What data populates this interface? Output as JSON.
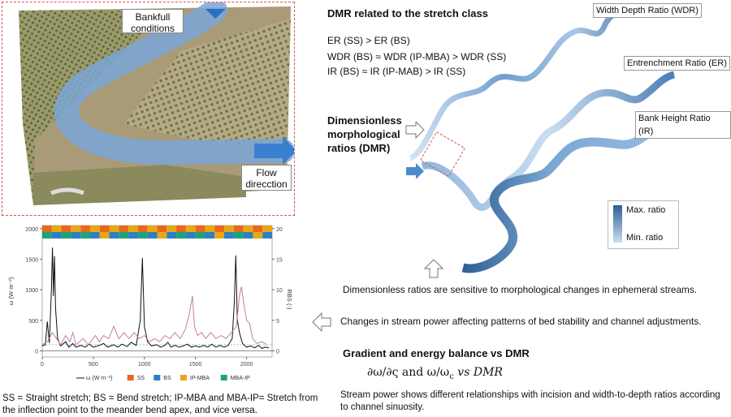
{
  "photo": {
    "callout_bankfull": "Bankfull conditions",
    "callout_flow": "Flow direcction"
  },
  "dmr_panel": {
    "title": "DMR related to the stretch class",
    "relations": [
      "ER (SS) > ER (BS)",
      "WDR (BS) ≈ WDR (IP-MBA) > WDR (SS)",
      "IR (BS) ≈ IR (IP-MAB) > IR (SS)"
    ],
    "dimensionless_label": "Dimensionless morphological ratios (DMR)",
    "river_labels": [
      "Width Depth Ratio (WDR)",
      "Entrenchment Ratio (ER)",
      "Bank Height Ratio (IR)"
    ],
    "scale_max": "Max. ratio",
    "scale_min": "Min. ratio",
    "colors": {
      "river_light": "#c9ddf0",
      "river_mid": "#7aa7d3",
      "river_dark": "#2f5f92"
    }
  },
  "statements": {
    "sensitivity": "Dimensionless ratios are sensitive to morphological changes in ephemeral streams.",
    "stream_power_changes": "Changes in stream power affecting patterns of bed stability and channel adjustments.",
    "gradient_title": "Gradient and energy balance vs DMR",
    "formula": "∂ω/∂ς  and  ω/ω",
    "formula_sub": "c",
    "formula_tail": "vs DMR",
    "conclusion": "Stream power shows different relationships with incision and width-to-depth ratios according to channel sinuosity."
  },
  "footnote": "SS = Straight stretch; BS = Bend stretch; IP-MBA and MBA-IP= Stretch from the inflection point to the meander bend apex,  and vice versa.",
  "chart_data": {
    "type": "line",
    "x_ticks": [
      0,
      500,
      1000,
      1500,
      2000
    ],
    "y_ticks": [
      0,
      500,
      1000,
      1500,
      2000
    ],
    "y2_ticks": [
      0,
      5,
      10,
      15,
      20
    ],
    "xlim": [
      0,
      2250
    ],
    "ylim": [
      -100,
      2050
    ],
    "y2lim": [
      -1,
      20.5
    ],
    "ylabel": "ω (W m⁻²)",
    "y2label": "RBS (-)",
    "reference_line_y2": 1,
    "series": [
      {
        "name": "ω (W m⁻²)",
        "axis": "left",
        "color": "#111111",
        "points": [
          [
            0,
            80
          ],
          [
            30,
            100
          ],
          [
            50,
            480
          ],
          [
            70,
            130
          ],
          [
            90,
            1000
          ],
          [
            100,
            1690
          ],
          [
            110,
            900
          ],
          [
            120,
            1550
          ],
          [
            130,
            700
          ],
          [
            150,
            200
          ],
          [
            180,
            80
          ],
          [
            230,
            150
          ],
          [
            260,
            60
          ],
          [
            300,
            120
          ],
          [
            330,
            60
          ],
          [
            380,
            90
          ],
          [
            420,
            60
          ],
          [
            460,
            110
          ],
          [
            500,
            60
          ],
          [
            560,
            90
          ],
          [
            600,
            120
          ],
          [
            640,
            60
          ],
          [
            700,
            100
          ],
          [
            740,
            60
          ],
          [
            780,
            110
          ],
          [
            830,
            70
          ],
          [
            870,
            140
          ],
          [
            920,
            90
          ],
          [
            960,
            500
          ],
          [
            980,
            1520
          ],
          [
            1000,
            400
          ],
          [
            1030,
            150
          ],
          [
            1070,
            80
          ],
          [
            1120,
            100
          ],
          [
            1160,
            60
          ],
          [
            1200,
            90
          ],
          [
            1230,
            140
          ],
          [
            1260,
            60
          ],
          [
            1300,
            90
          ],
          [
            1340,
            60
          ],
          [
            1380,
            80
          ],
          [
            1420,
            110
          ],
          [
            1460,
            60
          ],
          [
            1500,
            80
          ],
          [
            1540,
            60
          ],
          [
            1580,
            90
          ],
          [
            1620,
            60
          ],
          [
            1660,
            110
          ],
          [
            1700,
            60
          ],
          [
            1740,
            90
          ],
          [
            1780,
            60
          ],
          [
            1820,
            90
          ],
          [
            1860,
            200
          ],
          [
            1880,
            800
          ],
          [
            1895,
            1560
          ],
          [
            1910,
            500
          ],
          [
            1930,
            300
          ],
          [
            1960,
            120
          ],
          [
            2000,
            60
          ],
          [
            2040,
            80
          ],
          [
            2080,
            50
          ],
          [
            2120,
            90
          ],
          [
            2150,
            40
          ],
          [
            2180,
            60
          ],
          [
            2220,
            50
          ]
        ]
      },
      {
        "name": "RBS (-)",
        "axis": "right",
        "color": "#c77aa7",
        "points": [
          [
            0,
            1
          ],
          [
            50,
            1.5
          ],
          [
            100,
            3
          ],
          [
            140,
            2
          ],
          [
            180,
            1
          ],
          [
            230,
            2.5
          ],
          [
            270,
            1.5
          ],
          [
            300,
            3
          ],
          [
            330,
            1
          ],
          [
            400,
            2
          ],
          [
            450,
            1
          ],
          [
            520,
            2.5
          ],
          [
            560,
            1.5
          ],
          [
            600,
            2.5
          ],
          [
            650,
            2
          ],
          [
            700,
            4
          ],
          [
            750,
            2
          ],
          [
            800,
            3
          ],
          [
            850,
            2
          ],
          [
            900,
            3
          ],
          [
            950,
            2
          ],
          [
            1000,
            2.5
          ],
          [
            1050,
            1.5
          ],
          [
            1100,
            2
          ],
          [
            1150,
            1.5
          ],
          [
            1200,
            2.5
          ],
          [
            1250,
            2
          ],
          [
            1300,
            3
          ],
          [
            1350,
            2
          ],
          [
            1400,
            3.5
          ],
          [
            1440,
            6
          ],
          [
            1470,
            9
          ],
          [
            1490,
            4
          ],
          [
            1520,
            2.5
          ],
          [
            1560,
            3
          ],
          [
            1600,
            2
          ],
          [
            1650,
            3
          ],
          [
            1700,
            2
          ],
          [
            1750,
            2.5
          ],
          [
            1800,
            2
          ],
          [
            1850,
            3
          ],
          [
            1900,
            4
          ],
          [
            1930,
            9
          ],
          [
            1950,
            10.5
          ],
          [
            1970,
            8
          ],
          [
            2000,
            5
          ],
          [
            2030,
            4.5
          ],
          [
            2060,
            2
          ],
          [
            2100,
            1.2
          ],
          [
            2150,
            1.5
          ],
          [
            2200,
            1
          ]
        ]
      }
    ],
    "class_strip": {
      "legend": [
        {
          "label": "SS",
          "color": "#e8681e"
        },
        {
          "label": "BS",
          "color": "#2f7fc1"
        },
        {
          "label": "IP-MBA",
          "color": "#e6a817"
        },
        {
          "label": "MBA-IP",
          "color": "#1fa37a"
        }
      ]
    }
  }
}
